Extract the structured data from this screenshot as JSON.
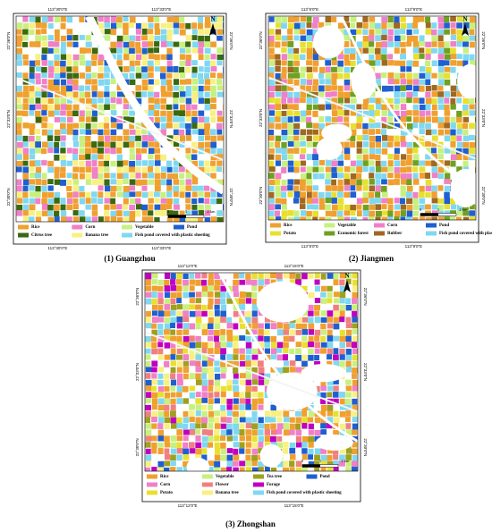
{
  "panels": [
    {
      "caption": "(1) Guangzhou",
      "north": "N",
      "scale": [
        "0",
        "1",
        "2 km"
      ],
      "lon_labels": [
        "113°30'0\"E",
        "113°33'0\"E"
      ],
      "lat_labels": [
        "22°36'0\"N",
        "22°33'0\"N",
        "22°30'0\"N"
      ],
      "legend": [
        [
          {
            "label": "Rice",
            "color": "#f0a030"
          },
          {
            "label": "Corn",
            "color": "#f080c8"
          },
          {
            "label": "Vegetable",
            "color": "#c8f080"
          },
          {
            "label": "Pond",
            "color": "#1f5fd0"
          }
        ],
        [
          {
            "label": "Citrus tree",
            "color": "#3a6a10"
          },
          {
            "label": "Banana tree",
            "color": "#f8f080"
          },
          {
            "label": "Fish pond covered with plastic sheeting",
            "color": "#80d8f0"
          }
        ]
      ]
    },
    {
      "caption": "(2) Jiangmen",
      "north": "N",
      "scale": [
        "0",
        "1",
        "2 km"
      ],
      "lon_labels": [
        "113°6'0\"E",
        "113°9'0\"E"
      ],
      "lat_labels": [
        "22°36'0\"N",
        "22°33'0\"N",
        "22°30'0\"N"
      ],
      "legend": [
        [
          {
            "label": "Rice",
            "color": "#f0a030"
          },
          {
            "label": "Vegetable",
            "color": "#c8f080"
          },
          {
            "label": "Corn",
            "color": "#f080c8"
          },
          {
            "label": "Pond",
            "color": "#1f5fd0"
          }
        ],
        [
          {
            "label": "Potato",
            "color": "#e8e030"
          },
          {
            "label": "Economic forest",
            "color": "#70a020"
          },
          {
            "label": "Rubber",
            "color": "#a06820"
          },
          {
            "label": "Fish pond covered with plastic sheeting",
            "color": "#80d8f0"
          }
        ]
      ]
    },
    {
      "caption": "(3) Zhongshan",
      "north": "N",
      "scale": [
        "0",
        "1",
        "2 km"
      ],
      "lon_labels": [
        "113°12'0\"E",
        "113°15'0\"E"
      ],
      "lat_labels": [
        "22°36'0\"N",
        "22°33'0\"N",
        "22°30'0\"N"
      ],
      "legend": [
        [
          {
            "label": "Rice",
            "color": "#f0a030"
          },
          {
            "label": "Vegetable",
            "color": "#c8f080"
          },
          {
            "label": "Tea tree",
            "color": "#a0a020"
          },
          {
            "label": "Pond",
            "color": "#1f5fd0"
          }
        ],
        [
          {
            "label": "Corn",
            "color": "#f080c8"
          },
          {
            "label": "Flower",
            "color": "#f08080"
          },
          {
            "label": "Forage",
            "color": "#c000c0"
          }
        ],
        [
          {
            "label": "Potato",
            "color": "#e8e030"
          },
          {
            "label": "Banana tree",
            "color": "#f8f080"
          },
          {
            "label": "Fish pond covered with plastic sheeting",
            "color": "#80d8f0"
          }
        ]
      ]
    }
  ]
}
